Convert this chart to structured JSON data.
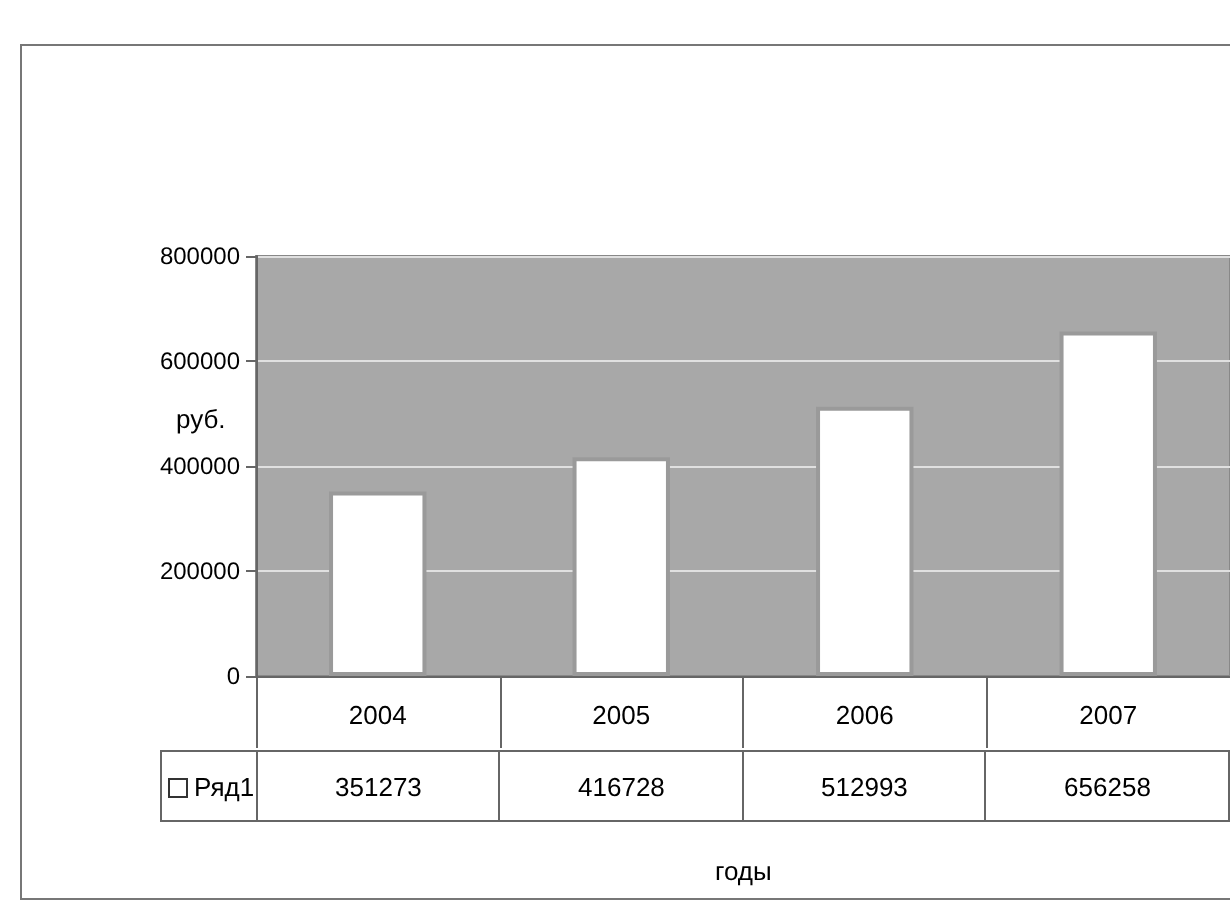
{
  "chart_data": {
    "type": "bar",
    "xlabel": "годы",
    "ylabel": "руб.",
    "categories": [
      "2004",
      "2005",
      "2006",
      "2007"
    ],
    "series": [
      {
        "name": "Ряд1",
        "color": "#ffffff",
        "values": [
          351273,
          416728,
          512993,
          656258
        ]
      }
    ],
    "ylim": [
      0,
      800000
    ],
    "yticks": [
      0,
      200000,
      400000,
      600000,
      800000
    ],
    "grid": "y",
    "data_labels": true,
    "legend": "bottom"
  }
}
